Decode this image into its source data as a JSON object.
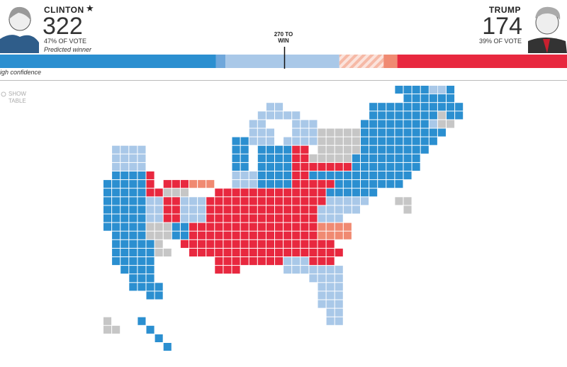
{
  "clinton": {
    "name": "CLINTON",
    "electoral_votes": 322,
    "vote_share": "47% OF VOTE",
    "note": "Predicted winner"
  },
  "trump": {
    "name": "TRUMP",
    "electoral_votes": 174,
    "vote_share": "39% OF VOTE"
  },
  "bar": {
    "range": [
      0,
      538
    ],
    "marker": {
      "value": 270,
      "label": "270 TO WIN"
    },
    "segments": [
      {
        "value": 205,
        "color": "#2b8fd0"
      },
      {
        "value": 9,
        "color": "#6fa7db"
      },
      {
        "value": 108,
        "color": "#a9c8e8"
      },
      {
        "value": 42,
        "color": "#f6c4b5",
        "hatched": true
      },
      {
        "value": 13,
        "color": "#f08a72"
      },
      {
        "value": 161,
        "color": "#e8283f"
      }
    ]
  },
  "confidence_label": "igh confidence",
  "show_table": "SHOW TABLE"
}
